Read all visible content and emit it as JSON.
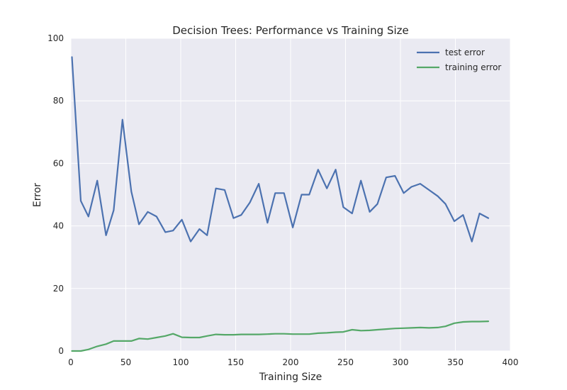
{
  "chart_data": {
    "type": "line",
    "title": "Decision Trees: Performance vs Training Size",
    "xlabel": "Training Size",
    "ylabel": "Error",
    "xlim": [
      0,
      400
    ],
    "ylim": [
      0,
      100
    ],
    "xticks": [
      0,
      50,
      100,
      150,
      200,
      250,
      300,
      350,
      400
    ],
    "yticks": [
      0,
      20,
      40,
      60,
      80,
      100
    ],
    "grid": true,
    "legend_position": "top-right",
    "series": [
      {
        "name": "test error",
        "color": "#4c72b0",
        "x": [
          1,
          9,
          16,
          24,
          32,
          39,
          47,
          55,
          62,
          70,
          78,
          86,
          93,
          101,
          109,
          117,
          124,
          132,
          140,
          148,
          155,
          163,
          171,
          179,
          186,
          194,
          202,
          210,
          217,
          225,
          233,
          241,
          248,
          256,
          264,
          272,
          279,
          287,
          295,
          303,
          310,
          318,
          326,
          334,
          341,
          349,
          357,
          365,
          372,
          380
        ],
        "y": [
          94,
          48,
          43,
          54.5,
          37,
          45,
          74,
          51,
          40.5,
          44.5,
          43,
          38,
          38.5,
          42,
          35,
          39,
          37,
          52,
          51.5,
          42.5,
          43.5,
          47.5,
          53.5,
          41,
          50.5,
          50.5,
          39.5,
          50,
          50,
          58,
          52,
          58,
          46,
          44,
          54.5,
          44.5,
          47,
          55.5,
          56,
          50.5,
          52.5,
          53.5,
          51.5,
          49.5,
          47,
          41.5,
          43.5,
          35,
          44,
          42.5
        ]
      },
      {
        "name": "training error",
        "color": "#55a868",
        "x": [
          1,
          9,
          16,
          24,
          32,
          39,
          47,
          55,
          62,
          70,
          78,
          86,
          93,
          101,
          109,
          117,
          124,
          132,
          140,
          148,
          155,
          163,
          171,
          179,
          186,
          194,
          202,
          210,
          217,
          225,
          233,
          241,
          248,
          256,
          264,
          272,
          279,
          287,
          295,
          303,
          310,
          318,
          326,
          334,
          341,
          349,
          357,
          365,
          372,
          380
        ],
        "y": [
          0,
          0,
          0.5,
          1.5,
          2.2,
          3.2,
          3.2,
          3.2,
          4,
          3.8,
          4.3,
          4.8,
          5.5,
          4.4,
          4.3,
          4.3,
          4.8,
          5.3,
          5.2,
          5.2,
          5.3,
          5.3,
          5.3,
          5.4,
          5.5,
          5.5,
          5.4,
          5.4,
          5.4,
          5.7,
          5.8,
          6,
          6.1,
          6.8,
          6.5,
          6.6,
          6.8,
          7,
          7.2,
          7.3,
          7.4,
          7.5,
          7.4,
          7.5,
          7.9,
          8.9,
          9.3,
          9.4,
          9.4,
          9.5
        ]
      }
    ]
  }
}
